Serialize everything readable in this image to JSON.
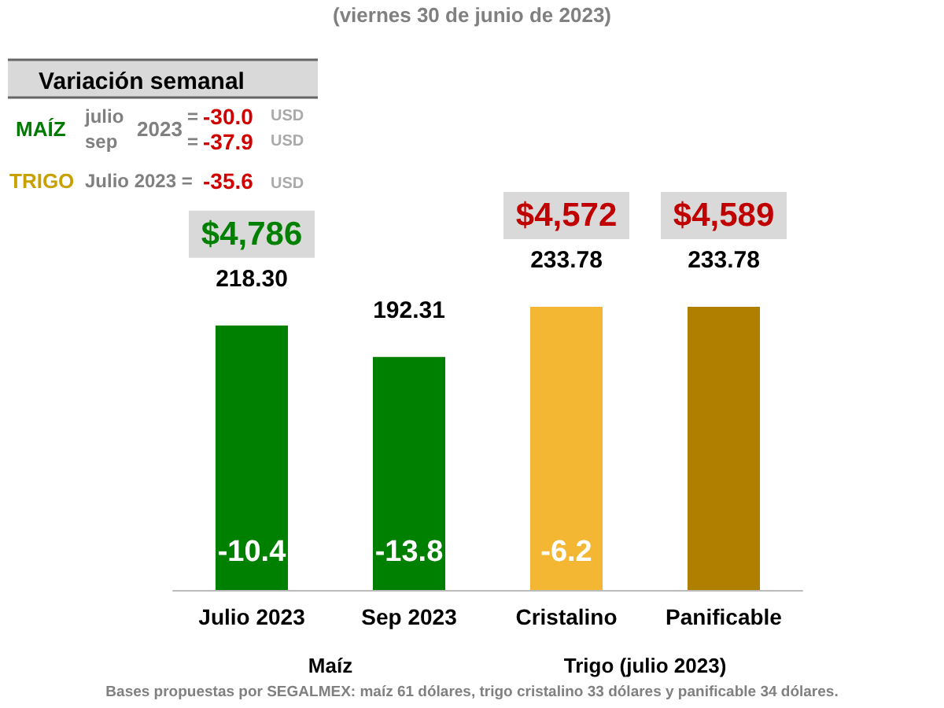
{
  "chart_data": {
    "type": "bar",
    "subtitle": "(viernes 30 de junio de 2023)",
    "categories": [
      "Julio 2023",
      "Sep 2023",
      "Cristalino",
      "Panificable"
    ],
    "values": [
      218.3,
      192.31,
      233.78,
      233.78
    ],
    "colors": [
      "#008000",
      "#008000",
      "#f4b733",
      "#b07f00"
    ],
    "value_labels": [
      "218.30",
      "192.31",
      "233.78",
      "233.78"
    ],
    "annotations": [
      "Variación semanal",
      "MAÍZ",
      "julio",
      "sep",
      "2023",
      "=",
      "-30.0",
      "USD",
      "=",
      "-37.9",
      "USD",
      "TRIGO",
      "Julio 2023 =",
      "-35.6",
      "USD",
      "Maíz",
      "Trigo (julio 2023)",
      "Bases propuestas por SEGALMEX: maíz 61 dólares, trigo cristalino 33 dólares y panificable 34 dólares.",
      "$4,786",
      "-10.4",
      "-13.8",
      "$4,572",
      "-6.2",
      "$4,589"
    ]
  }
}
